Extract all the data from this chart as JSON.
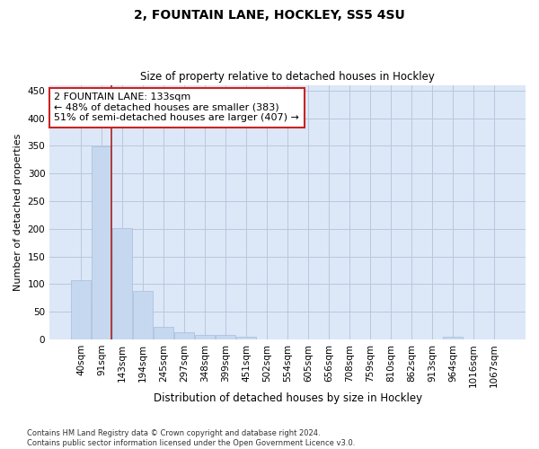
{
  "title": "2, FOUNTAIN LANE, HOCKLEY, SS5 4SU",
  "subtitle": "Size of property relative to detached houses in Hockley",
  "xlabel": "Distribution of detached houses by size in Hockley",
  "ylabel": "Number of detached properties",
  "bin_labels": [
    "40sqm",
    "91sqm",
    "143sqm",
    "194sqm",
    "245sqm",
    "297sqm",
    "348sqm",
    "399sqm",
    "451sqm",
    "502sqm",
    "554sqm",
    "605sqm",
    "656sqm",
    "708sqm",
    "759sqm",
    "810sqm",
    "862sqm",
    "913sqm",
    "964sqm",
    "1016sqm",
    "1067sqm"
  ],
  "bar_heights": [
    107,
    349,
    202,
    88,
    22,
    13,
    8,
    8,
    5,
    0,
    0,
    0,
    0,
    0,
    0,
    0,
    0,
    0,
    4,
    0,
    0
  ],
  "bar_color": "#c5d8f0",
  "bar_edge_color": "#a8bcd8",
  "grid_color": "#b8c8dc",
  "bg_color": "#dce8f8",
  "vline_color": "#aa2222",
  "vline_x_index": 1.45,
  "annotation_text": "2 FOUNTAIN LANE: 133sqm\n← 48% of detached houses are smaller (383)\n51% of semi-detached houses are larger (407) →",
  "annotation_box_color": "#cc2222",
  "ylim": [
    0,
    460
  ],
  "yticks": [
    0,
    50,
    100,
    150,
    200,
    250,
    300,
    350,
    400,
    450
  ],
  "footnote": "Contains HM Land Registry data © Crown copyright and database right 2024.\nContains public sector information licensed under the Open Government Licence v3.0.",
  "figsize": [
    6.0,
    5.0
  ],
  "dpi": 100
}
